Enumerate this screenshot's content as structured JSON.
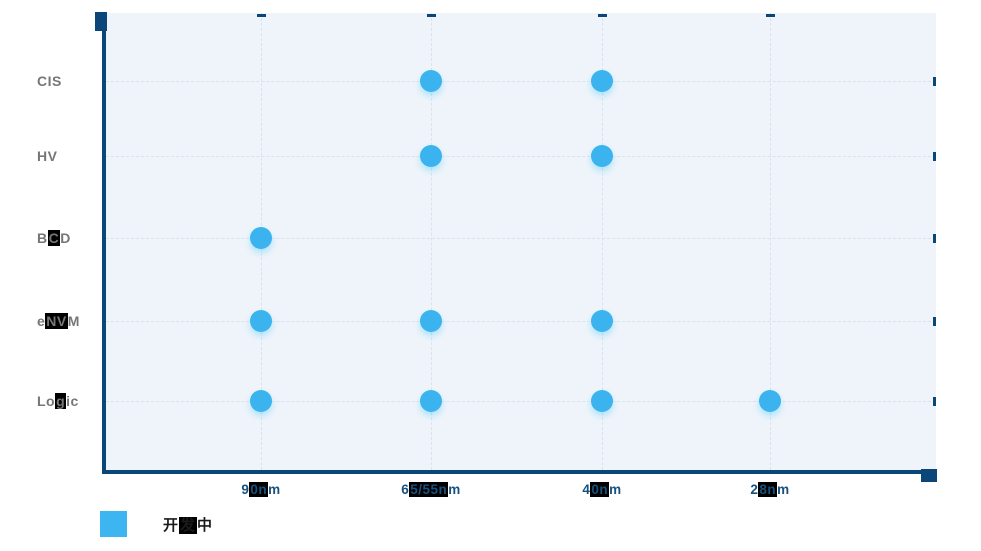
{
  "chart_data": {
    "type": "scatter",
    "title": "",
    "xlabel": "",
    "ylabel": "",
    "grid": true,
    "x_categories": [
      "90nm",
      "65/55nm",
      "40nm",
      "28nm"
    ],
    "y_categories": [
      "CIS",
      "HV",
      "BCD",
      "eNVM",
      "Logic"
    ],
    "points": [
      {
        "x": "65/55nm",
        "y": "CIS"
      },
      {
        "x": "40nm",
        "y": "CIS"
      },
      {
        "x": "65/55nm",
        "y": "HV"
      },
      {
        "x": "40nm",
        "y": "HV"
      },
      {
        "x": "90nm",
        "y": "BCD"
      },
      {
        "x": "90nm",
        "y": "eNVM"
      },
      {
        "x": "65/55nm",
        "y": "eNVM"
      },
      {
        "x": "40nm",
        "y": "eNVM"
      },
      {
        "x": "90nm",
        "y": "Logic"
      },
      {
        "x": "65/55nm",
        "y": "Logic"
      },
      {
        "x": "40nm",
        "y": "Logic"
      },
      {
        "x": "28nm",
        "y": "Logic"
      }
    ],
    "legend_position": "bottom-left",
    "legend": {
      "label": "开发中",
      "swatch_color": "#3cb5f0",
      "segments": [
        {
          "text": "开"
        },
        {
          "text": "发",
          "highlighted": true
        },
        {
          "text": "中"
        }
      ]
    },
    "x_axis_labels": [
      {
        "category": "90nm",
        "segments": [
          {
            "text": "9"
          },
          {
            "text": "0n",
            "highlighted": true
          },
          {
            "text": "m"
          }
        ]
      },
      {
        "category": "65/55nm",
        "segments": [
          {
            "text": "6"
          },
          {
            "text": "5/55n",
            "highlighted": true
          },
          {
            "text": "m"
          }
        ]
      },
      {
        "category": "40nm",
        "segments": [
          {
            "text": "4"
          },
          {
            "text": "0n",
            "highlighted": true
          },
          {
            "text": "m"
          }
        ]
      },
      {
        "category": "28nm",
        "segments": [
          {
            "text": "2"
          },
          {
            "text": "8n",
            "highlighted": true
          },
          {
            "text": "m"
          }
        ]
      }
    ],
    "y_axis_labels": [
      {
        "category": "CIS",
        "segments": [
          {
            "text": "CIS"
          }
        ]
      },
      {
        "category": "HV",
        "segments": [
          {
            "text": "HV"
          }
        ]
      },
      {
        "category": "BCD",
        "segments": [
          {
            "text": "B"
          },
          {
            "text": "C",
            "highlighted": true
          },
          {
            "text": "D"
          }
        ]
      },
      {
        "category": "eNVM",
        "segments": [
          {
            "text": "e"
          },
          {
            "text": "NV",
            "highlighted": true
          },
          {
            "text": "M"
          }
        ]
      },
      {
        "category": "Logic",
        "segments": [
          {
            "text": "Lo"
          },
          {
            "text": "g",
            "highlighted": true
          },
          {
            "text": "ic"
          }
        ]
      }
    ],
    "colors": {
      "point": "#3ab3ee",
      "axis": "#0a4678",
      "grid_line": "#d9e2ed",
      "plot_background": "#eff4fa",
      "x_label_text": "#17517e",
      "y_label_text": "#767676",
      "legend_text": "#1a1a1a",
      "highlight_background": "#000000"
    }
  }
}
